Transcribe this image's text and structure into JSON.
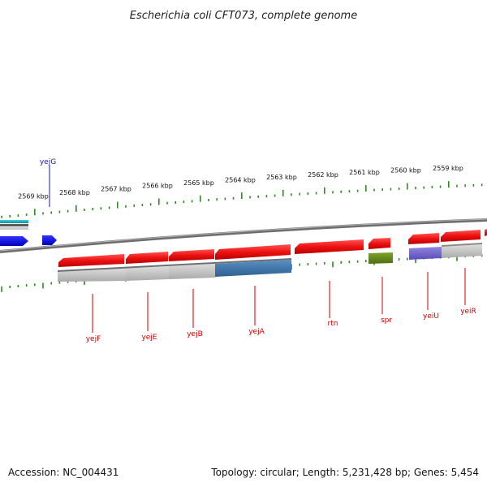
{
  "title": "Escherichia coli CFT073, complete genome",
  "footer": {
    "accession": "Accession: NC_004431",
    "topology": "Topology: circular; Length: 5,231,428 bp; Genes: 5,454"
  },
  "scale_labels": [
    "2569 kbp",
    "2568 kbp",
    "2567 kbp",
    "2566 kbp",
    "2565 kbp",
    "2564 kbp",
    "2563 kbp",
    "2562 kbp",
    "2561 kbp",
    "2560 kbp",
    "2559 kbp"
  ],
  "gene_labels": {
    "yejG": "yejG",
    "yejF": "yejF",
    "yejE": "yejE",
    "yejB": "yejB",
    "yejA": "yejA",
    "rtn": "rtn",
    "spr": "spr",
    "yeiU": "yeiU",
    "yeiR": "yeiR"
  },
  "colors": {
    "gene_forward": "#ee1111",
    "gene_reverse_blue": "#1111dd",
    "backbone": "#808080",
    "tick": "#2e8b22",
    "cog_teal": "#19b4c4",
    "cog_blue": "#3f79b0",
    "cog_green": "#6b8e23",
    "cog_purple": "#7366cc",
    "cog_gray": "#bbbbbb"
  }
}
